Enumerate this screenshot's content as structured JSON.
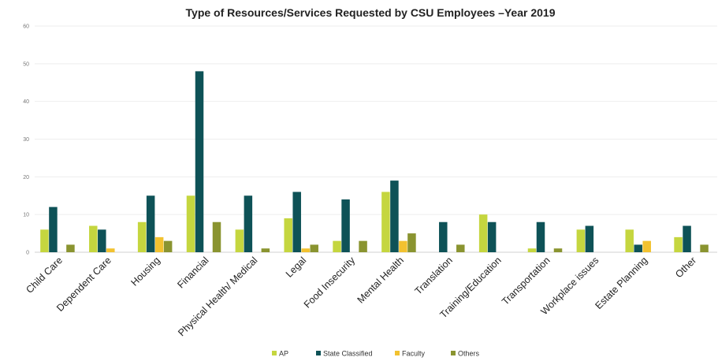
{
  "chart_data": {
    "type": "bar",
    "title": "Type of Resources/Services  Requested by CSU Employees –Year 2019",
    "xlabel": "",
    "ylabel": "",
    "ylim": [
      0,
      60
    ],
    "yticks": [
      0,
      10,
      20,
      30,
      40,
      50,
      60
    ],
    "grid": true,
    "legend_position": "bottom",
    "categories": [
      "Child Care",
      "Dependent Care",
      "Housing",
      "Financial",
      "Physical Health/ Medical",
      "Legal",
      "Food Insecurity",
      "Mental Health",
      "Translation",
      "Training/Education",
      "Transportation",
      "Workplace issues",
      "Estate Planning",
      "Other"
    ],
    "series": [
      {
        "name": "AP",
        "color": "#c5d63f",
        "values": [
          6,
          7,
          8,
          15,
          6,
          9,
          3,
          16,
          0,
          10,
          1,
          6,
          6,
          4
        ]
      },
      {
        "name": "State Classified",
        "color": "#0e5257",
        "values": [
          12,
          6,
          15,
          48,
          15,
          16,
          14,
          19,
          8,
          8,
          8,
          7,
          2,
          7
        ]
      },
      {
        "name": "Faculty",
        "color": "#f2c230",
        "values": [
          0,
          1,
          4,
          0,
          0,
          1,
          0,
          3,
          0,
          0,
          0,
          0,
          3,
          0
        ]
      },
      {
        "name": "Others",
        "color": "#8a9430",
        "values": [
          2,
          0,
          3,
          8,
          1,
          2,
          3,
          5,
          2,
          0,
          1,
          0,
          0,
          2
        ]
      }
    ]
  }
}
